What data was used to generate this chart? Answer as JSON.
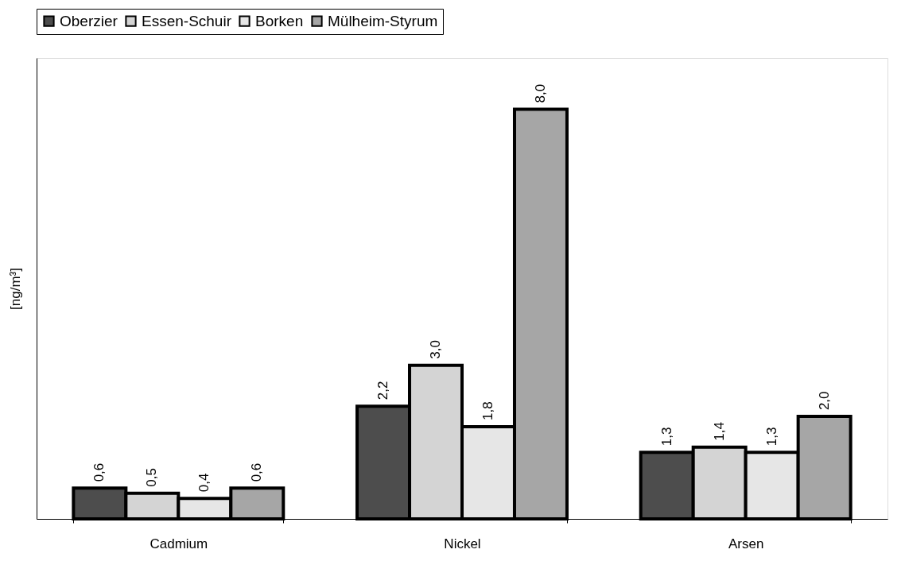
{
  "chart_data": {
    "type": "bar",
    "ylabel": "[ng/m³]",
    "categories": [
      "Cadmium",
      "Nickel",
      "Arsen"
    ],
    "series": [
      {
        "name": "Oberzier",
        "color": "#4d4d4d",
        "values": [
          0.6,
          2.2,
          1.3
        ],
        "value_labels": [
          "0,6",
          "2,2",
          "1,3"
        ]
      },
      {
        "name": "Essen-Schuir",
        "color": "#d4d4d4",
        "values": [
          0.5,
          3.0,
          1.4
        ],
        "value_labels": [
          "0,5",
          "3,0",
          "1,4"
        ]
      },
      {
        "name": "Borken",
        "color": "#e6e6e6",
        "values": [
          0.4,
          1.8,
          1.3
        ],
        "value_labels": [
          "0,4",
          "1,8",
          "1,3"
        ]
      },
      {
        "name": "Mülheim-Styrum",
        "color": "#a6a6a6",
        "values": [
          0.6,
          8.0,
          2.0
        ],
        "value_labels": [
          "0,6",
          "8,0",
          "2,0"
        ]
      }
    ],
    "ylim": [
      0,
      9
    ],
    "tick_labels": "x",
    "legend": "top",
    "grid": false
  }
}
